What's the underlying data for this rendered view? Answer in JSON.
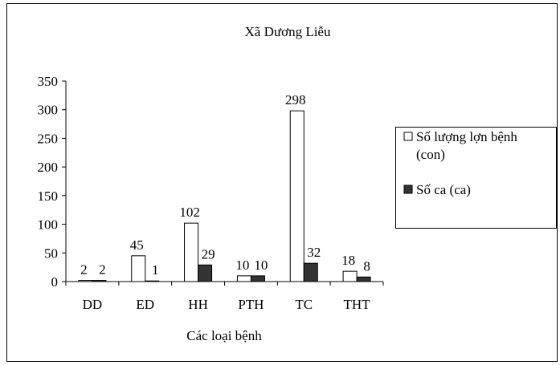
{
  "chart_data": {
    "type": "bar",
    "title": "Xã Dương Liễu",
    "xlabel": "Các loại bệnh",
    "ylabel": "",
    "categories": [
      "DD",
      "ED",
      "HH",
      "PTH",
      "TC",
      "THT"
    ],
    "ylim": [
      0,
      350
    ],
    "yticks": [
      0,
      50,
      100,
      150,
      200,
      250,
      300,
      350
    ],
    "grid": false,
    "legend_position": "right",
    "series": [
      {
        "name": "Số lượng lợn bệnh (con)",
        "values": [
          2,
          45,
          102,
          10,
          298,
          18
        ],
        "color": "#ffffff"
      },
      {
        "name": "Số ca (ca)",
        "values": [
          2,
          1,
          29,
          10,
          32,
          8
        ],
        "color": "#333333"
      }
    ]
  }
}
